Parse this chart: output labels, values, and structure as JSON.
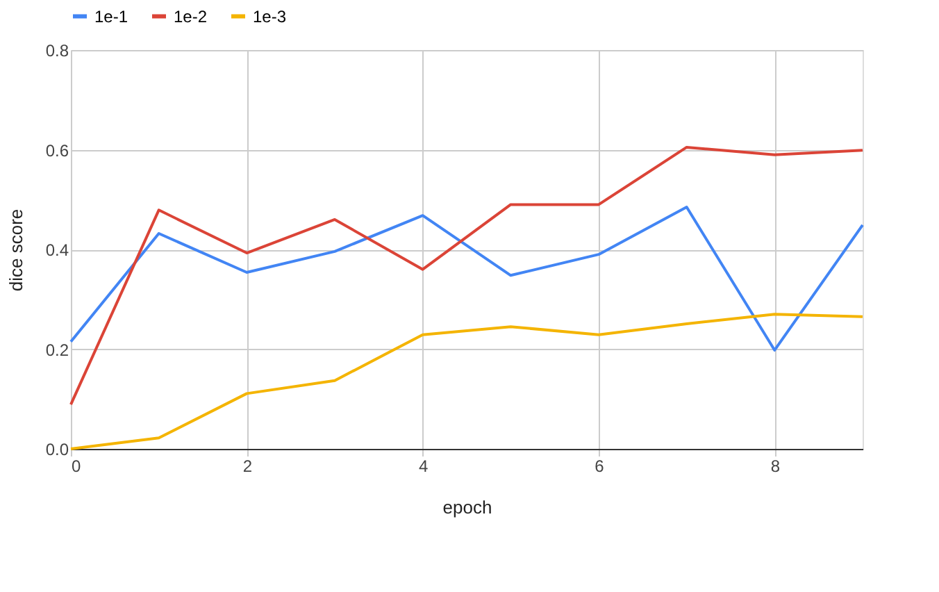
{
  "chart_data": {
    "type": "line",
    "xlabel": "epoch",
    "ylabel": "dice score",
    "x": [
      0,
      1,
      2,
      3,
      4,
      5,
      6,
      7,
      8,
      9
    ],
    "series": [
      {
        "name": "1e-1",
        "color": "#4285f4",
        "values": [
          0.215,
          0.432,
          0.354,
          0.396,
          0.468,
          0.348,
          0.39,
          0.485,
          0.198,
          0.449
        ]
      },
      {
        "name": "1e-2",
        "color": "#db4437",
        "values": [
          0.089,
          0.479,
          0.393,
          0.46,
          0.36,
          0.49,
          0.49,
          0.605,
          0.59,
          0.599
        ]
      },
      {
        "name": "1e-3",
        "color": "#f4b400",
        "values": [
          0,
          0.022,
          0.111,
          0.137,
          0.229,
          0.245,
          0.229,
          0.251,
          0.27,
          0.265
        ]
      }
    ],
    "xlim": [
      0,
      9
    ],
    "xticks": [
      0,
      2,
      4,
      6,
      8
    ],
    "ylim": [
      0,
      0.8
    ],
    "yticks": [
      {
        "value": 0,
        "label": "0.0"
      },
      {
        "value": 0.2,
        "label": "0.2"
      },
      {
        "value": 0.4,
        "label": "0.4"
      },
      {
        "value": 0.6,
        "label": "0.6"
      },
      {
        "value": 0.8,
        "label": "0.8"
      }
    ],
    "grid": true,
    "legend": "top",
    "marker": "none",
    "line_style": "solid"
  }
}
